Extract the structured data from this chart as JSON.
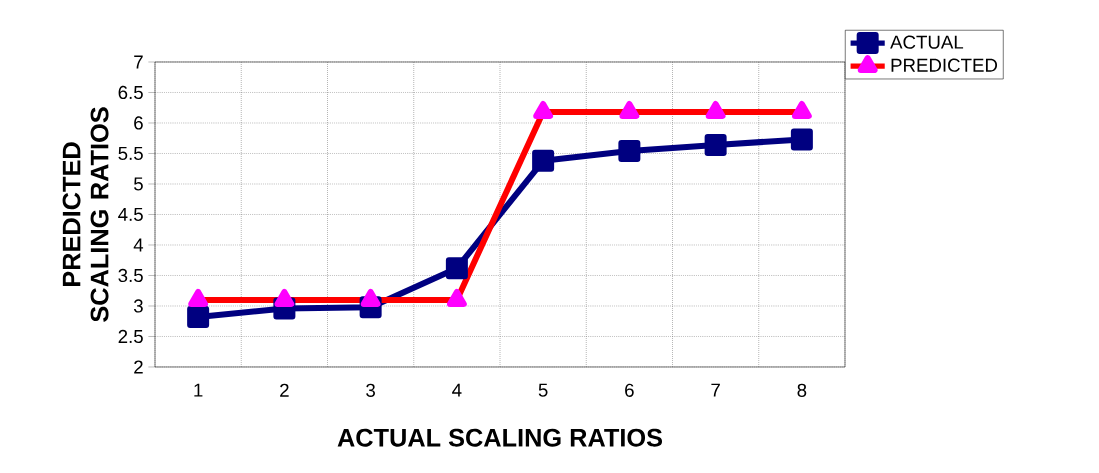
{
  "chart_data": {
    "type": "line",
    "xlabel": "ACTUAL SCALING RATIOS",
    "ylabel": "PREDICTED SCALING RATIOS",
    "categories": [
      "1",
      "2",
      "3",
      "4",
      "5",
      "6",
      "7",
      "8"
    ],
    "series": [
      {
        "name": "ACTUAL",
        "color": "#000080",
        "marker": "square",
        "values": [
          2.82,
          2.96,
          2.98,
          3.62,
          5.38,
          5.54,
          5.64,
          5.73
        ]
      },
      {
        "name": "PREDICTED",
        "color": "#ff0000",
        "marker": "triangle",
        "colors": [
          "#ff00ff",
          "#ff00ff",
          "#ff00ff",
          "#ff00ff",
          "#ff00ff",
          "#ff00ff",
          "#ff00ff",
          "#ff00ff"
        ],
        "values": [
          3.1,
          3.1,
          3.1,
          3.1,
          6.18,
          6.18,
          6.18,
          6.18
        ]
      }
    ],
    "ylim": [
      2,
      7
    ],
    "yticks": [
      2,
      2.5,
      3,
      3.5,
      4,
      4.5,
      5,
      5.5,
      6,
      6.5,
      7
    ],
    "grid": true,
    "legend": "top right",
    "line_style": "solid"
  }
}
